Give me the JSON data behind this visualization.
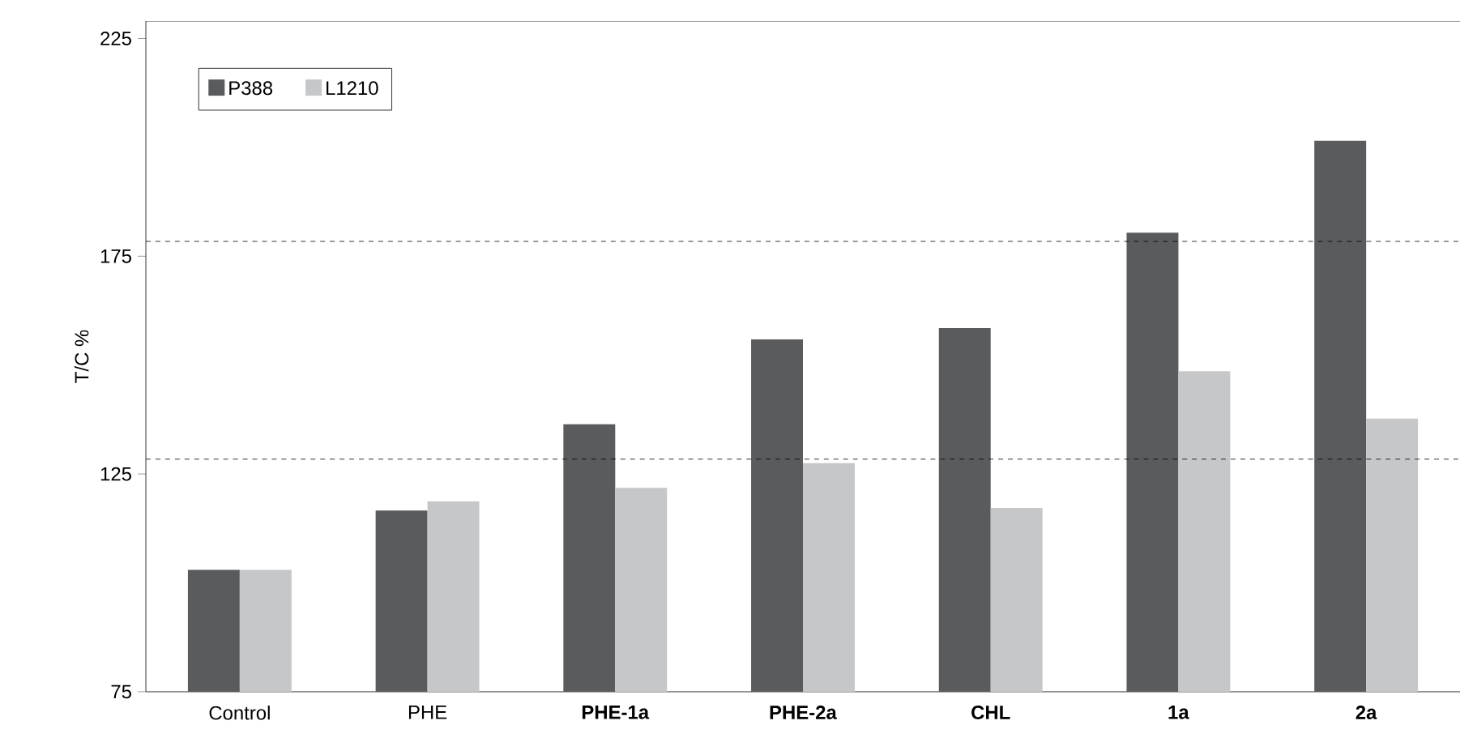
{
  "chart_data": {
    "type": "bar",
    "ylabel": "T/C %",
    "categories": [
      "Control",
      "PHE",
      "**PHE-1a**",
      "**PHE-2a**",
      "**CHL**",
      "**1a**",
      "**2a**"
    ],
    "series": [
      {
        "name": "P388",
        "color": "#5a5b5d",
        "values": [
          103,
          116.6,
          136.4,
          155.9,
          158.5,
          180.4,
          201.5
        ]
      },
      {
        "name": "L1210",
        "color": "#c6c7c9",
        "values": [
          103,
          118.7,
          121.8,
          127.5,
          117.2,
          148.6,
          137.7
        ]
      }
    ],
    "ylim": [
      75,
      229
    ],
    "yticks": [
      75,
      125,
      175,
      225
    ],
    "ref_lines": [
      {
        "axis": "y",
        "value": 178.4,
        "line_style": "dashed"
      },
      {
        "axis": "y",
        "value": 128.4,
        "line_style": "dashed"
      }
    ],
    "grid": false,
    "legend": "top left"
  }
}
